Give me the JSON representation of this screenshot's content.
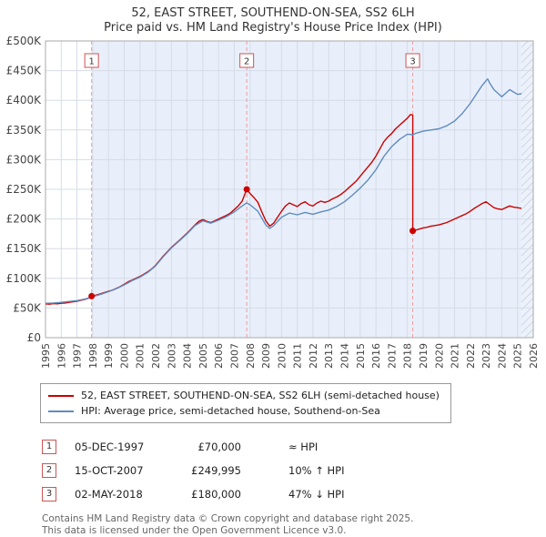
{
  "chart_data": {
    "type": "line",
    "title": "52, EAST STREET, SOUTHEND-ON-SEA, SS2 6LH",
    "subtitle": "Price paid vs. HM Land Registry's House Price Index (HPI)",
    "x_min": 1995,
    "x_max": 2026,
    "y_min": 0,
    "y_max": 500000,
    "y_tick_step": 50000,
    "y_tick_labels": [
      "£0",
      "£50K",
      "£100K",
      "£150K",
      "£200K",
      "£250K",
      "£300K",
      "£350K",
      "£400K",
      "£450K",
      "£500K"
    ],
    "x_ticks": [
      1995,
      1996,
      1997,
      1998,
      1999,
      2000,
      2001,
      2002,
      2003,
      2004,
      2005,
      2006,
      2007,
      2008,
      2009,
      2010,
      2011,
      2012,
      2013,
      2014,
      2015,
      2016,
      2017,
      2018,
      2019,
      2020,
      2021,
      2022,
      2023,
      2024,
      2025,
      2026
    ],
    "grid": true,
    "legend_position": "bottom",
    "shaded_region": {
      "from": 1997.93,
      "to": 2025.25,
      "color": "#e9effa"
    },
    "future_region": {
      "from": 2025.25,
      "to": 2026
    },
    "colors": {
      "price_paid": "#cc0000",
      "hpi": "#5f8cbf",
      "sale_line": "#f09a9a",
      "grid": "#d6dce6",
      "border": "#aaaaaa"
    },
    "sales": [
      {
        "n": 1,
        "x": 1997.93,
        "y": 70000,
        "date": "05-DEC-1997",
        "price": "£70,000",
        "vs_hpi": "≈ HPI"
      },
      {
        "n": 2,
        "x": 2007.79,
        "y": 249995,
        "date": "15-OCT-2007",
        "price": "£249,995",
        "vs_hpi": "10% ↑ HPI"
      },
      {
        "n": 3,
        "x": 2018.34,
        "y": 180000,
        "date": "02-MAY-2018",
        "price": "£180,000",
        "vs_hpi": "47% ↓ HPI"
      }
    ],
    "series": [
      {
        "name": "52, EAST STREET, SOUTHEND-ON-SEA, SS2 6LH (semi-detached house)",
        "color": "#cc0000",
        "points": [
          [
            1995,
            57000
          ],
          [
            1995.25,
            56500
          ],
          [
            1995.5,
            57500
          ],
          [
            1995.75,
            57000
          ],
          [
            1996,
            58000
          ],
          [
            1996.25,
            58500
          ],
          [
            1996.5,
            59500
          ],
          [
            1996.75,
            60500
          ],
          [
            1997,
            61500
          ],
          [
            1997.25,
            63000
          ],
          [
            1997.5,
            64500
          ],
          [
            1997.75,
            66500
          ],
          [
            1997.93,
            70000
          ],
          [
            1998.25,
            72000
          ],
          [
            1998.5,
            74000
          ],
          [
            1998.75,
            76000
          ],
          [
            1999,
            78000
          ],
          [
            1999.25,
            80000
          ],
          [
            1999.5,
            83000
          ],
          [
            1999.75,
            86000
          ],
          [
            2000,
            90000
          ],
          [
            2000.25,
            94000
          ],
          [
            2000.5,
            97000
          ],
          [
            2000.75,
            100000
          ],
          [
            2001,
            103000
          ],
          [
            2001.25,
            107000
          ],
          [
            2001.5,
            111000
          ],
          [
            2001.75,
            116000
          ],
          [
            2002,
            122000
          ],
          [
            2002.25,
            130000
          ],
          [
            2002.5,
            138000
          ],
          [
            2002.75,
            145000
          ],
          [
            2003,
            152000
          ],
          [
            2003.25,
            158000
          ],
          [
            2003.5,
            164000
          ],
          [
            2003.75,
            170000
          ],
          [
            2004,
            176000
          ],
          [
            2004.25,
            183000
          ],
          [
            2004.5,
            190000
          ],
          [
            2004.75,
            196000
          ],
          [
            2005,
            199000
          ],
          [
            2005.25,
            196000
          ],
          [
            2005.5,
            194000
          ],
          [
            2005.75,
            197000
          ],
          [
            2006,
            200000
          ],
          [
            2006.25,
            203000
          ],
          [
            2006.5,
            206000
          ],
          [
            2006.75,
            210000
          ],
          [
            2007,
            216000
          ],
          [
            2007.25,
            222000
          ],
          [
            2007.5,
            230000
          ],
          [
            2007.79,
            249995
          ],
          [
            2008,
            243000
          ],
          [
            2008.25,
            236000
          ],
          [
            2008.5,
            228000
          ],
          [
            2008.75,
            212000
          ],
          [
            2009,
            197000
          ],
          [
            2009.25,
            188000
          ],
          [
            2009.5,
            193000
          ],
          [
            2009.75,
            203000
          ],
          [
            2010,
            213000
          ],
          [
            2010.25,
            222000
          ],
          [
            2010.5,
            227000
          ],
          [
            2010.75,
            224000
          ],
          [
            2011,
            221000
          ],
          [
            2011.25,
            226000
          ],
          [
            2011.5,
            229000
          ],
          [
            2011.75,
            224000
          ],
          [
            2012,
            222000
          ],
          [
            2012.25,
            227000
          ],
          [
            2012.5,
            230000
          ],
          [
            2012.75,
            228000
          ],
          [
            2013,
            230000
          ],
          [
            2013.25,
            234000
          ],
          [
            2013.5,
            237000
          ],
          [
            2013.75,
            241000
          ],
          [
            2014,
            246000
          ],
          [
            2014.25,
            252000
          ],
          [
            2014.5,
            258000
          ],
          [
            2014.75,
            264000
          ],
          [
            2015,
            272000
          ],
          [
            2015.25,
            280000
          ],
          [
            2015.5,
            288000
          ],
          [
            2015.75,
            296000
          ],
          [
            2016,
            306000
          ],
          [
            2016.25,
            318000
          ],
          [
            2016.5,
            330000
          ],
          [
            2016.75,
            338000
          ],
          [
            2017,
            344000
          ],
          [
            2017.25,
            352000
          ],
          [
            2017.5,
            358000
          ],
          [
            2017.75,
            364000
          ],
          [
            2018,
            370000
          ],
          [
            2018.2,
            376000
          ],
          [
            2018.34,
            375000
          ],
          [
            2018.34,
            180000
          ],
          [
            2018.5,
            181000
          ],
          [
            2018.75,
            183000
          ],
          [
            2019,
            185000
          ],
          [
            2019.25,
            186000
          ],
          [
            2019.5,
            188000
          ],
          [
            2019.75,
            189000
          ],
          [
            2020,
            190000
          ],
          [
            2020.25,
            192000
          ],
          [
            2020.5,
            194000
          ],
          [
            2020.75,
            197000
          ],
          [
            2021,
            200000
          ],
          [
            2021.25,
            203000
          ],
          [
            2021.5,
            206000
          ],
          [
            2021.75,
            209000
          ],
          [
            2022,
            213000
          ],
          [
            2022.25,
            218000
          ],
          [
            2022.5,
            222000
          ],
          [
            2022.75,
            226000
          ],
          [
            2023,
            229000
          ],
          [
            2023.25,
            224000
          ],
          [
            2023.5,
            219000
          ],
          [
            2023.75,
            217000
          ],
          [
            2024,
            216000
          ],
          [
            2024.25,
            219000
          ],
          [
            2024.5,
            222000
          ],
          [
            2024.75,
            220000
          ],
          [
            2025,
            219000
          ],
          [
            2025.25,
            218000
          ]
        ]
      },
      {
        "name": "HPI: Average price, semi-detached house, Southend-on-Sea",
        "color": "#5f8cbf",
        "points": [
          [
            1995,
            58000
          ],
          [
            1995.5,
            58500
          ],
          [
            1996,
            59500
          ],
          [
            1996.5,
            61000
          ],
          [
            1997,
            62500
          ],
          [
            1997.5,
            65000
          ],
          [
            1998,
            69000
          ],
          [
            1998.5,
            73000
          ],
          [
            1999,
            77500
          ],
          [
            1999.5,
            82500
          ],
          [
            2000,
            89000
          ],
          [
            2000.5,
            96000
          ],
          [
            2001,
            102000
          ],
          [
            2001.5,
            110000
          ],
          [
            2002,
            121000
          ],
          [
            2002.5,
            137000
          ],
          [
            2003,
            151000
          ],
          [
            2003.5,
            163000
          ],
          [
            2004,
            175000
          ],
          [
            2004.5,
            189000
          ],
          [
            2005,
            197000
          ],
          [
            2005.5,
            193000
          ],
          [
            2006,
            198000
          ],
          [
            2006.5,
            204000
          ],
          [
            2007,
            212000
          ],
          [
            2007.5,
            222000
          ],
          [
            2007.79,
            227000
          ],
          [
            2008,
            224000
          ],
          [
            2008.5,
            213000
          ],
          [
            2009,
            190000
          ],
          [
            2009.25,
            184000
          ],
          [
            2009.5,
            189000
          ],
          [
            2010,
            203000
          ],
          [
            2010.5,
            210000
          ],
          [
            2011,
            207000
          ],
          [
            2011.5,
            211000
          ],
          [
            2012,
            208000
          ],
          [
            2012.5,
            212000
          ],
          [
            2013,
            215000
          ],
          [
            2013.5,
            221000
          ],
          [
            2014,
            229000
          ],
          [
            2014.5,
            240000
          ],
          [
            2015,
            252000
          ],
          [
            2015.5,
            266000
          ],
          [
            2016,
            283000
          ],
          [
            2016.5,
            305000
          ],
          [
            2017,
            322000
          ],
          [
            2017.5,
            334000
          ],
          [
            2018,
            343000
          ],
          [
            2018.34,
            342000
          ],
          [
            2018.5,
            344000
          ],
          [
            2019,
            348000
          ],
          [
            2019.5,
            350000
          ],
          [
            2020,
            352000
          ],
          [
            2020.5,
            357000
          ],
          [
            2021,
            365000
          ],
          [
            2021.5,
            378000
          ],
          [
            2022,
            395000
          ],
          [
            2022.25,
            405000
          ],
          [
            2022.5,
            415000
          ],
          [
            2022.75,
            425000
          ],
          [
            2023,
            433000
          ],
          [
            2023.1,
            436000
          ],
          [
            2023.25,
            428000
          ],
          [
            2023.5,
            418000
          ],
          [
            2023.75,
            412000
          ],
          [
            2024,
            406000
          ],
          [
            2024.25,
            412000
          ],
          [
            2024.5,
            418000
          ],
          [
            2024.75,
            414000
          ],
          [
            2025,
            410000
          ],
          [
            2025.25,
            411000
          ]
        ]
      }
    ]
  },
  "footer": {
    "line1": "Contains HM Land Registry data © Crown copyright and database right 2025.",
    "line2": "This data is licensed under the Open Government Licence v3.0."
  }
}
